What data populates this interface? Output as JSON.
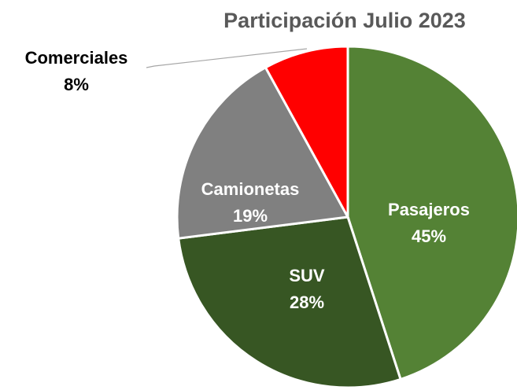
{
  "chart_data": {
    "type": "pie",
    "title": "Participación Julio 2023",
    "categories": [
      "Pasajeros",
      "SUV",
      "Camionetas",
      "Comerciales"
    ],
    "values": [
      45,
      28,
      19,
      8
    ],
    "value_labels": [
      "45%",
      "28%",
      "19%",
      "8%"
    ],
    "colors": [
      "#548235",
      "#375623",
      "#808080",
      "#ff0000"
    ]
  }
}
